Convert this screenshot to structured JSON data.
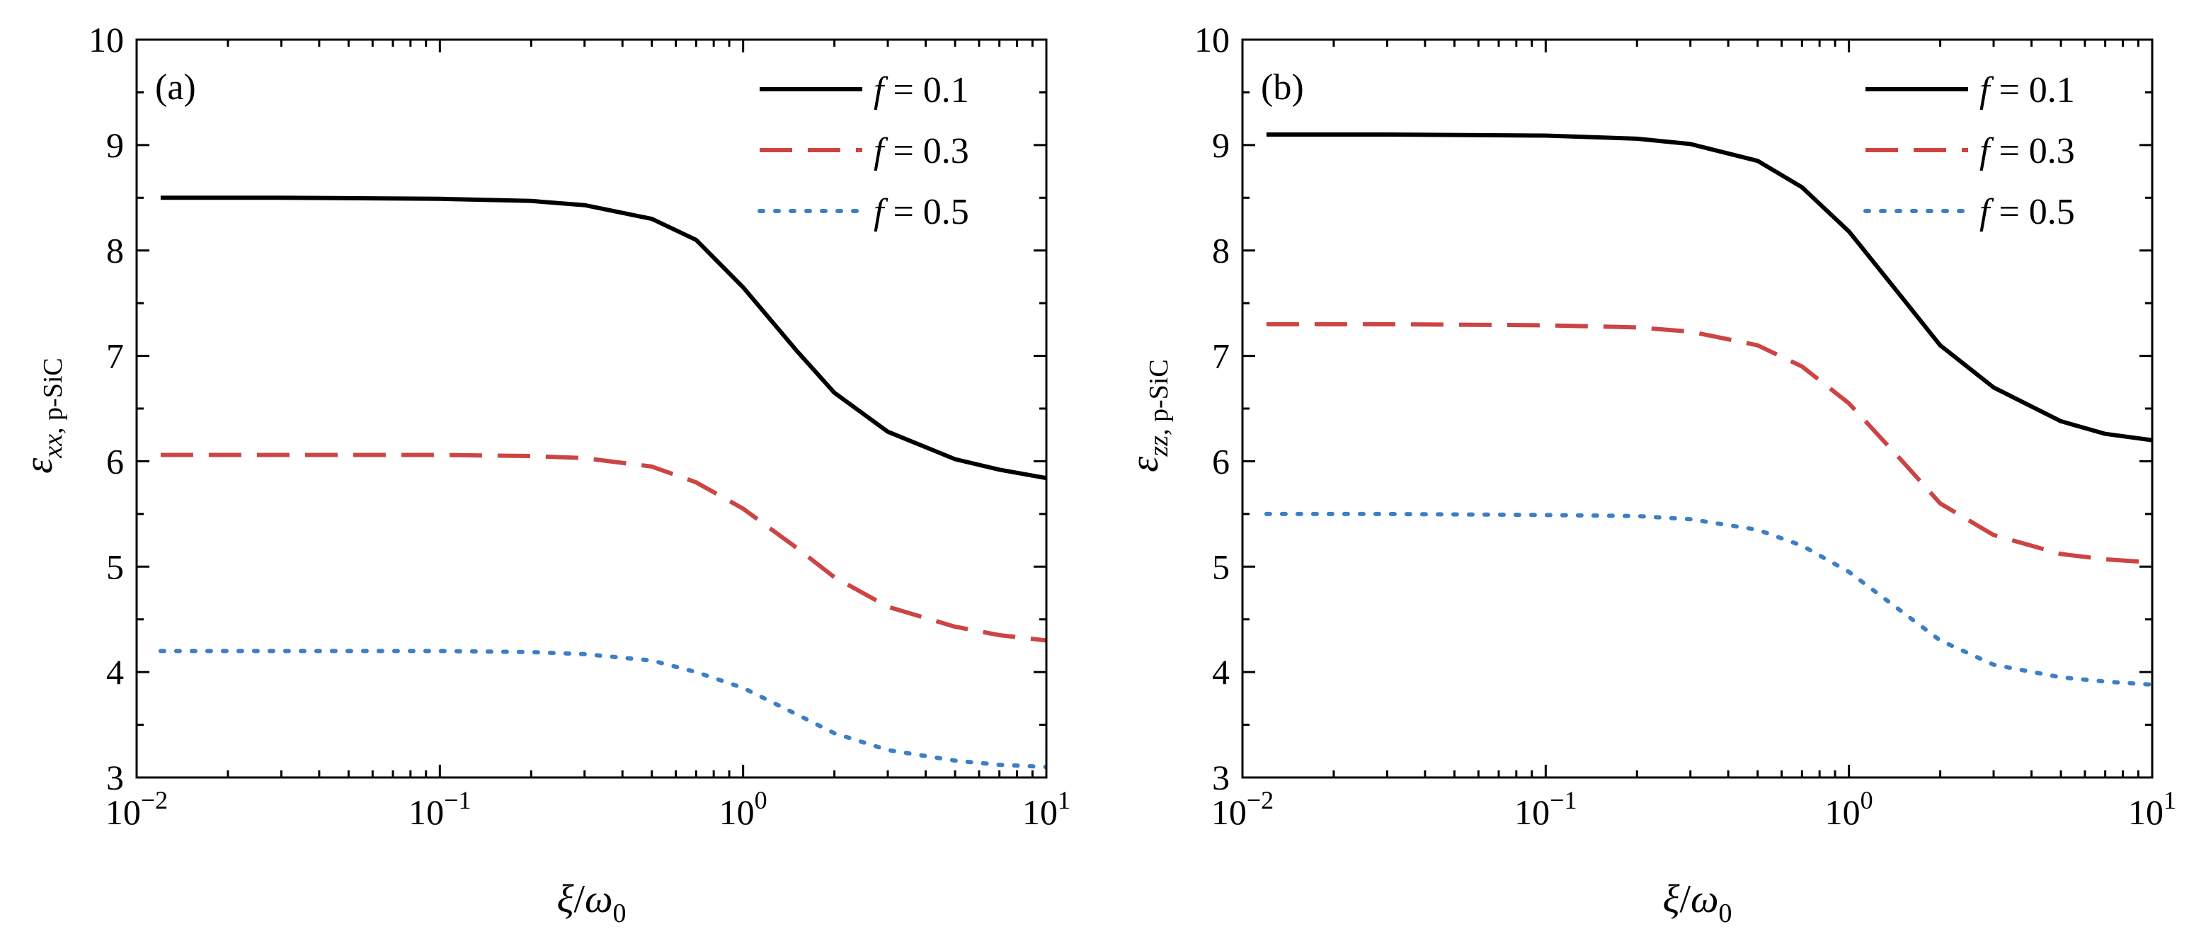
{
  "chart_data": [
    {
      "id": "a",
      "type": "line",
      "panel_label": "(a)",
      "x_scale": "log",
      "xlim": [
        0.01,
        10
      ],
      "ylim": [
        3,
        10
      ],
      "x_ticks": [
        {
          "value": 0.01,
          "base": "10",
          "exp": "−2"
        },
        {
          "value": 0.1,
          "base": "10",
          "exp": "−1"
        },
        {
          "value": 1,
          "base": "10",
          "exp": "0"
        },
        {
          "value": 10,
          "base": "10",
          "exp": "1"
        }
      ],
      "y_ticks": [
        "3",
        "4",
        "5",
        "6",
        "7",
        "8",
        "9",
        "10"
      ],
      "xlabel": {
        "symbol1": "ξ",
        "slash": "/",
        "symbol2": "ω",
        "sub": "0"
      },
      "ylabel": {
        "symbol": "ε",
        "sub_var": "xx",
        "sub_text": ", p-SiC"
      },
      "legend": {
        "position": "top-right",
        "entries": [
          {
            "var": "f",
            "text": " = 0.1"
          },
          {
            "var": "f",
            "text": " = 0.3"
          },
          {
            "var": "f",
            "text": " = 0.5"
          }
        ]
      },
      "series": [
        {
          "name": "f = 0.1",
          "color": "#000000",
          "dash": "solid",
          "x": [
            0.012,
            0.03,
            0.1,
            0.2,
            0.3,
            0.5,
            0.7,
            1,
            1.5,
            2,
            3,
            5,
            7,
            10
          ],
          "y": [
            8.5,
            8.5,
            8.49,
            8.47,
            8.43,
            8.3,
            8.1,
            7.65,
            7.05,
            6.65,
            6.28,
            6.02,
            5.92,
            5.84
          ]
        },
        {
          "name": "f = 0.3",
          "color": "#cc4444",
          "dash": "dashed",
          "x": [
            0.012,
            0.03,
            0.1,
            0.2,
            0.3,
            0.5,
            0.7,
            1,
            1.5,
            2,
            3,
            5,
            7,
            10
          ],
          "y": [
            6.06,
            6.06,
            6.06,
            6.05,
            6.03,
            5.95,
            5.8,
            5.55,
            5.18,
            4.9,
            4.62,
            4.43,
            4.35,
            4.3
          ]
        },
        {
          "name": "f = 0.5",
          "color": "#3d7fc4",
          "dash": "dotted",
          "x": [
            0.012,
            0.03,
            0.1,
            0.2,
            0.3,
            0.5,
            0.7,
            1,
            1.5,
            2,
            3,
            5,
            7,
            10
          ],
          "y": [
            4.2,
            4.2,
            4.2,
            4.19,
            4.17,
            4.11,
            4.0,
            3.85,
            3.6,
            3.42,
            3.26,
            3.16,
            3.12,
            3.1
          ]
        }
      ]
    },
    {
      "id": "b",
      "type": "line",
      "panel_label": "(b)",
      "x_scale": "log",
      "xlim": [
        0.01,
        10
      ],
      "ylim": [
        3,
        10
      ],
      "x_ticks": [
        {
          "value": 0.01,
          "base": "10",
          "exp": "−2"
        },
        {
          "value": 0.1,
          "base": "10",
          "exp": "−1"
        },
        {
          "value": 1,
          "base": "10",
          "exp": "0"
        },
        {
          "value": 10,
          "base": "10",
          "exp": "1"
        }
      ],
      "y_ticks": [
        "3",
        "4",
        "5",
        "6",
        "7",
        "8",
        "9",
        "10"
      ],
      "xlabel": {
        "symbol1": "ξ",
        "slash": "/",
        "symbol2": "ω",
        "sub": "0"
      },
      "ylabel": {
        "symbol": "ε",
        "sub_var": "zz",
        "sub_text": ", p-SiC"
      },
      "legend": {
        "position": "top-right",
        "entries": [
          {
            "var": "f",
            "text": " = 0.1"
          },
          {
            "var": "f",
            "text": " = 0.3"
          },
          {
            "var": "f",
            "text": " = 0.5"
          }
        ]
      },
      "series": [
        {
          "name": "f = 0.1",
          "color": "#000000",
          "dash": "solid",
          "x": [
            0.012,
            0.03,
            0.1,
            0.2,
            0.3,
            0.5,
            0.7,
            1,
            1.5,
            2,
            3,
            5,
            7,
            10
          ],
          "y": [
            9.1,
            9.1,
            9.09,
            9.06,
            9.01,
            8.85,
            8.6,
            8.18,
            7.55,
            7.1,
            6.7,
            6.38,
            6.26,
            6.2
          ]
        },
        {
          "name": "f = 0.3",
          "color": "#cc4444",
          "dash": "dashed",
          "x": [
            0.012,
            0.03,
            0.1,
            0.2,
            0.3,
            0.5,
            0.7,
            1,
            1.5,
            2,
            3,
            5,
            7,
            10
          ],
          "y": [
            7.3,
            7.3,
            7.29,
            7.27,
            7.23,
            7.1,
            6.9,
            6.55,
            6.0,
            5.6,
            5.3,
            5.12,
            5.07,
            5.04
          ]
        },
        {
          "name": "f = 0.5",
          "color": "#3d7fc4",
          "dash": "dotted",
          "x": [
            0.012,
            0.03,
            0.1,
            0.2,
            0.3,
            0.5,
            0.7,
            1,
            1.5,
            2,
            3,
            5,
            7,
            10
          ],
          "y": [
            5.5,
            5.5,
            5.49,
            5.48,
            5.45,
            5.35,
            5.2,
            4.95,
            4.57,
            4.3,
            4.07,
            3.95,
            3.91,
            3.88
          ]
        }
      ]
    }
  ]
}
